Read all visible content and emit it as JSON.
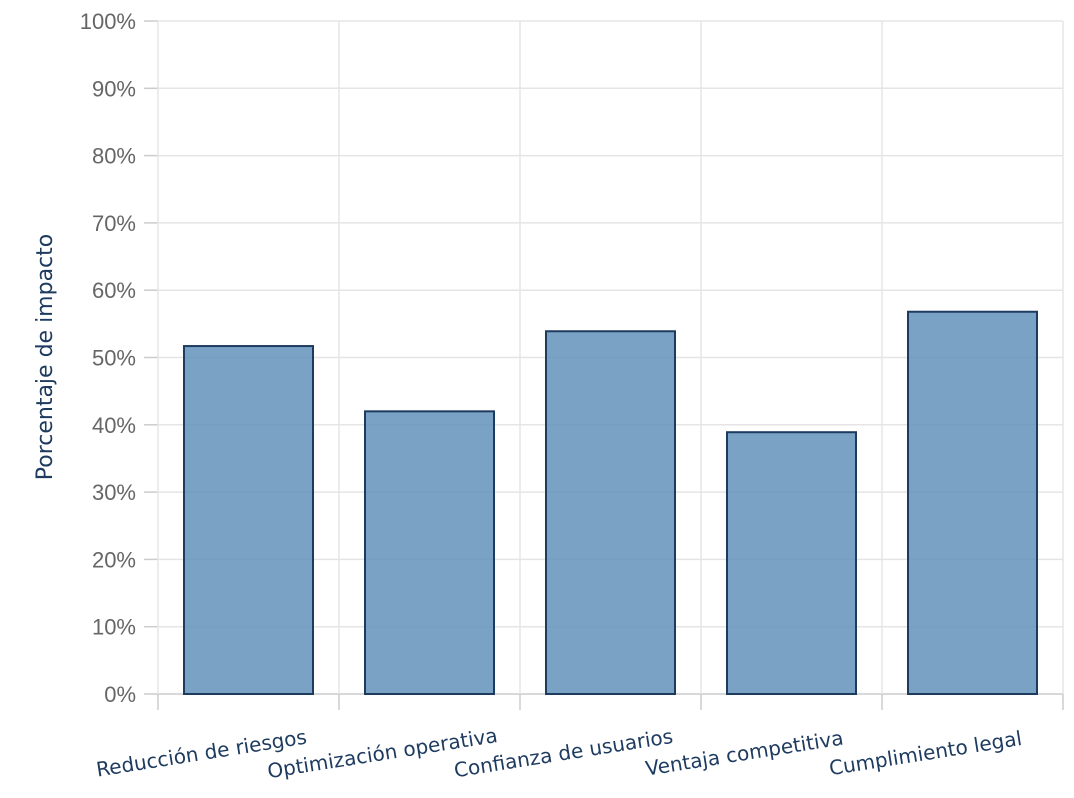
{
  "chart_data": {
    "type": "bar",
    "categories": [
      "Reducción de riesgos",
      "Optimización operativa",
      "Confianza de usuarios",
      "Ventaja competitiva",
      "Cumplimiento legal"
    ],
    "values": [
      51.7,
      42.0,
      53.9,
      38.9,
      56.8
    ],
    "title": "",
    "xlabel": "",
    "ylabel": "Porcentaje de impacto",
    "ylim": [
      0,
      100
    ],
    "yticks": [
      0,
      10,
      20,
      30,
      40,
      50,
      60,
      70,
      80,
      90,
      100
    ],
    "ytick_labels": [
      "0%",
      "10%",
      "20%",
      "30%",
      "40%",
      "50%",
      "60%",
      "70%",
      "80%",
      "90%",
      "100%"
    ],
    "grid": true,
    "colors": {
      "bar_fill": "#5b8db8",
      "bar_stroke": "#1d3a5f",
      "grid": "#e5e5e5",
      "text": "#666666",
      "label": "#1d3a5f"
    }
  }
}
